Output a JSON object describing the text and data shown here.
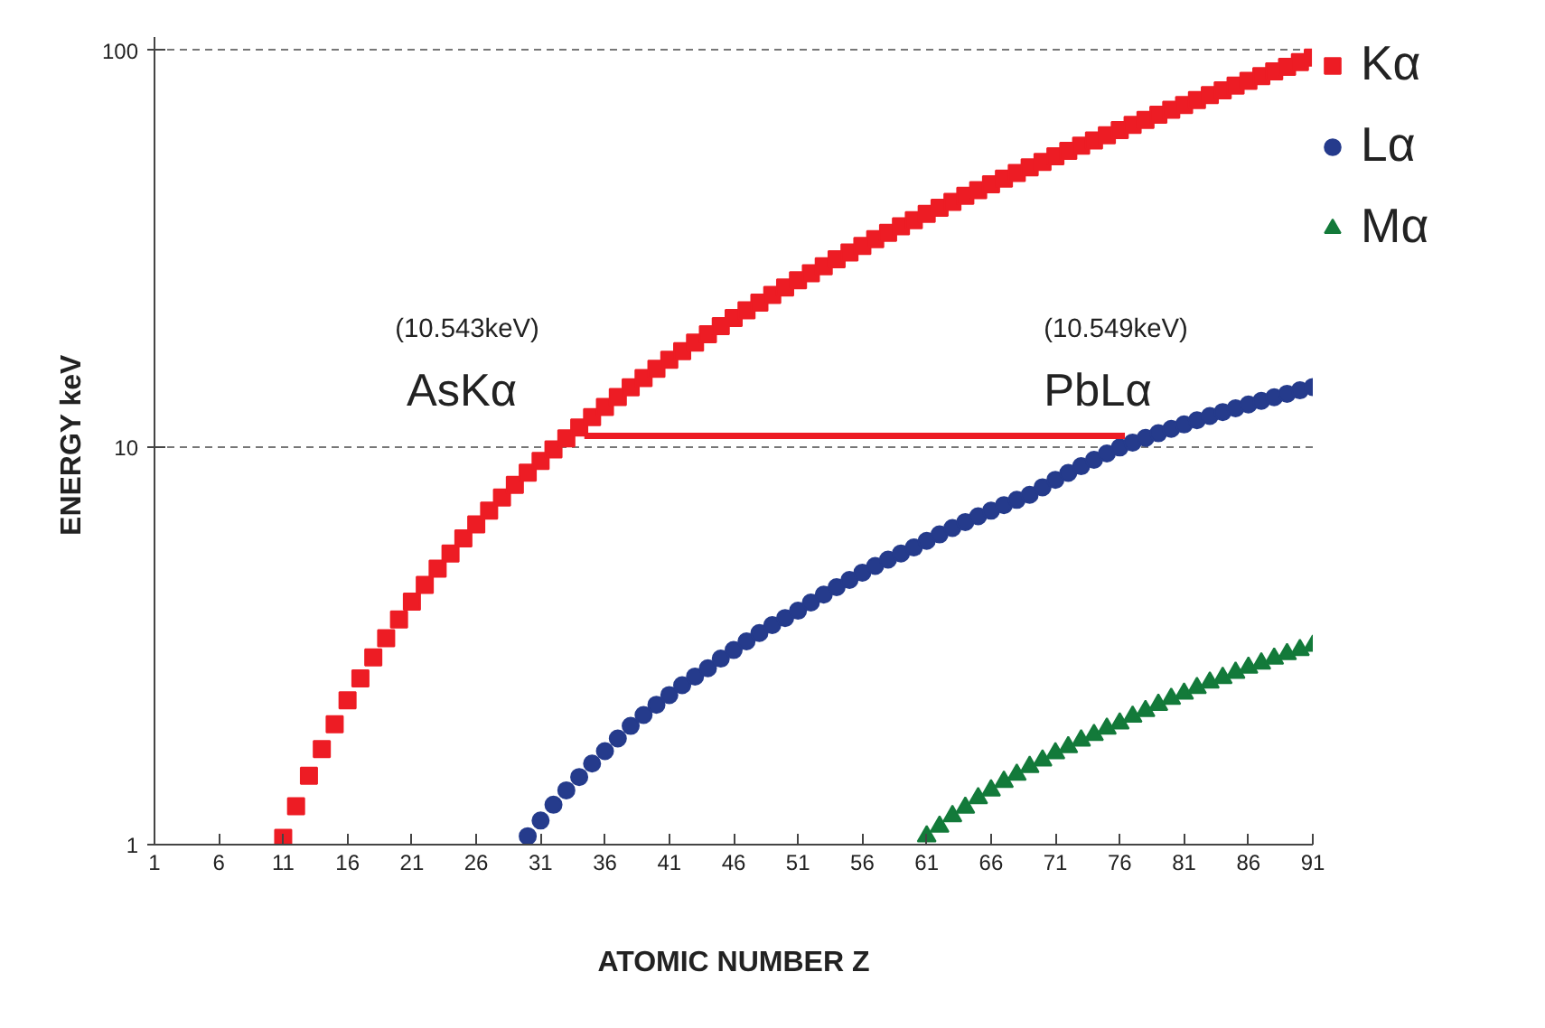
{
  "chart_data": {
    "type": "scatter",
    "xlabel": "ATOMIC NUMBER Z",
    "ylabel": "ENERGY  keV",
    "log": "y",
    "xlim": [
      1,
      91
    ],
    "xticks": [
      1,
      6,
      11,
      16,
      21,
      26,
      31,
      36,
      41,
      46,
      51,
      56,
      61,
      66,
      71,
      76,
      81,
      86,
      91
    ],
    "ylim": [
      1,
      108
    ],
    "yticks": [
      1,
      10,
      100
    ],
    "grid": "y",
    "legend": "top right",
    "series": [
      {
        "name": "Kα",
        "color": "#ed1c24",
        "marker": "square",
        "x": [
          11,
          12,
          13,
          14,
          15,
          16,
          17,
          18,
          19,
          20,
          21,
          22,
          23,
          24,
          25,
          26,
          27,
          28,
          29,
          30,
          31,
          32,
          33,
          34,
          35,
          36,
          37,
          38,
          39,
          40,
          41,
          42,
          43,
          44,
          45,
          46,
          47,
          48,
          49,
          50,
          51,
          52,
          53,
          54,
          55,
          56,
          57,
          58,
          59,
          60,
          61,
          62,
          63,
          64,
          65,
          66,
          67,
          68,
          69,
          70,
          71,
          72,
          73,
          74,
          75,
          76,
          77,
          78,
          79,
          80,
          81,
          82,
          83,
          84,
          85,
          86,
          87,
          88,
          89,
          90,
          91
        ],
        "values": [
          1.04,
          1.25,
          1.49,
          1.74,
          2.01,
          2.31,
          2.62,
          2.96,
          3.31,
          3.69,
          4.09,
          4.51,
          4.95,
          5.41,
          5.9,
          6.4,
          6.93,
          7.48,
          8.05,
          8.64,
          9.25,
          9.89,
          10.54,
          11.22,
          11.92,
          12.65,
          13.4,
          14.17,
          14.96,
          15.78,
          16.62,
          17.48,
          18.37,
          19.28,
          20.22,
          21.18,
          22.16,
          23.17,
          24.21,
          25.27,
          26.36,
          27.47,
          28.61,
          29.78,
          30.97,
          32.19,
          33.44,
          34.72,
          36.03,
          37.36,
          38.72,
          40.12,
          41.54,
          43.0,
          44.48,
          45.99,
          47.55,
          49.13,
          50.74,
          52.39,
          54.07,
          55.79,
          57.53,
          59.32,
          61.14,
          63.0,
          64.9,
          66.83,
          68.8,
          70.82,
          72.87,
          74.97,
          77.11,
          79.29,
          81.52,
          83.78,
          86.1,
          88.47,
          90.88,
          93.35,
          95.87
        ]
      },
      {
        "name": "Lα",
        "color": "#253b8c",
        "marker": "circle",
        "x": [
          30,
          31,
          32,
          33,
          34,
          35,
          36,
          37,
          38,
          39,
          40,
          41,
          42,
          43,
          44,
          45,
          46,
          47,
          48,
          49,
          50,
          51,
          52,
          53,
          54,
          55,
          56,
          57,
          58,
          59,
          60,
          61,
          62,
          63,
          64,
          65,
          66,
          67,
          68,
          69,
          70,
          71,
          72,
          73,
          74,
          75,
          76,
          77,
          78,
          79,
          80,
          81,
          82,
          83,
          84,
          85,
          86,
          87,
          88,
          89,
          90,
          91
        ],
        "values": [
          1.05,
          1.15,
          1.26,
          1.37,
          1.48,
          1.6,
          1.72,
          1.85,
          1.99,
          2.12,
          2.25,
          2.38,
          2.52,
          2.65,
          2.78,
          2.94,
          3.09,
          3.25,
          3.41,
          3.57,
          3.72,
          3.88,
          4.07,
          4.26,
          4.45,
          4.64,
          4.84,
          5.03,
          5.22,
          5.41,
          5.6,
          5.82,
          6.04,
          6.27,
          6.49,
          6.71,
          6.93,
          7.16,
          7.38,
          7.6,
          7.94,
          8.29,
          8.63,
          8.97,
          9.31,
          9.66,
          10.0,
          10.29,
          10.57,
          10.86,
          11.14,
          11.43,
          11.71,
          12.0,
          12.28,
          12.55,
          12.83,
          13.1,
          13.38,
          13.65,
          13.93,
          14.2
        ]
      },
      {
        "name": "Mα",
        "color": "#137a3a",
        "marker": "triangle",
        "x": [
          61,
          62,
          63,
          64,
          65,
          66,
          67,
          68,
          69,
          70,
          71,
          72,
          73,
          74,
          75,
          76,
          77,
          78,
          79,
          80,
          81,
          82,
          83,
          84,
          85,
          86,
          87,
          88,
          89,
          90,
          91
        ],
        "values": [
          1.05,
          1.11,
          1.18,
          1.24,
          1.31,
          1.37,
          1.44,
          1.5,
          1.57,
          1.63,
          1.7,
          1.76,
          1.83,
          1.89,
          1.96,
          2.02,
          2.1,
          2.17,
          2.25,
          2.33,
          2.4,
          2.48,
          2.56,
          2.63,
          2.71,
          2.79,
          2.86,
          2.94,
          3.02,
          3.09,
          3.17
        ]
      },
      {
        "type": "line",
        "color": "#ed1c24",
        "x": [
          34.4,
          76.4
        ],
        "values": [
          10.7,
          10.7
        ]
      }
    ],
    "annotations": [
      "(10.543keV)",
      "AsKα",
      "(10.549keV)",
      "PbLα"
    ]
  }
}
